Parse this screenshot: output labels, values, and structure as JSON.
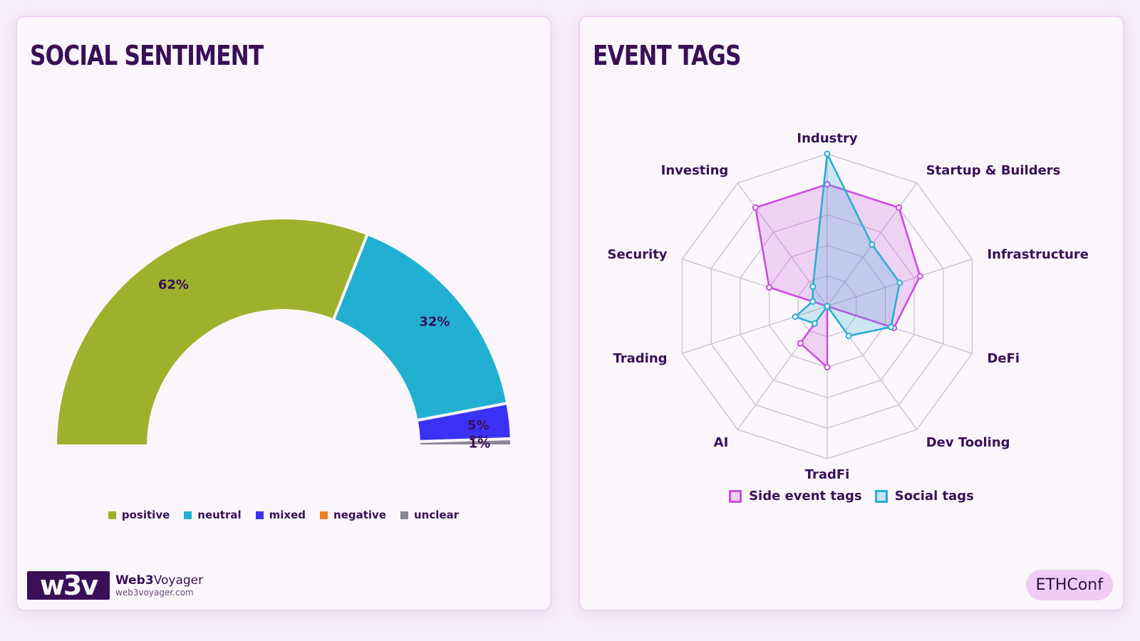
{
  "colors": {
    "title": "#3a0f57",
    "positive": "#9db12c",
    "neutral": "#22b0d2",
    "mixed": "#3a33f5",
    "negative": "#f07e22",
    "unclear": "#8b8797",
    "side_event": "#c94fdc",
    "social": "#2aaed2",
    "grid": "#c8bccf"
  },
  "sentiment": {
    "title": "Social Sentiment",
    "legend": [
      {
        "label": "positive",
        "color_key": "positive"
      },
      {
        "label": "neutral",
        "color_key": "neutral"
      },
      {
        "label": "mixed",
        "color_key": "mixed"
      },
      {
        "label": "negative",
        "color_key": "negative"
      },
      {
        "label": "unclear",
        "color_key": "unclear"
      }
    ]
  },
  "tags": {
    "title": "Event Tags",
    "legend": [
      {
        "label": "Side event tags",
        "color_key": "side_event"
      },
      {
        "label": "Social tags",
        "color_key": "social"
      }
    ]
  },
  "branding": {
    "logo_mark": "w3v",
    "name_bold": "Web3",
    "name_regular": "Voyager",
    "url": "web3voyager.com",
    "event_badge": "ETHConf"
  },
  "chart_data": [
    {
      "type": "pie",
      "subtype": "semicircle-donut",
      "title": "Social Sentiment",
      "categories": [
        "positive",
        "neutral",
        "mixed",
        "negative",
        "unclear"
      ],
      "values": [
        62,
        32,
        5,
        0,
        1
      ],
      "labels": [
        "62%",
        "32%",
        "5%",
        "0%",
        "1%"
      ],
      "legend_position": "bottom"
    },
    {
      "type": "radar",
      "title": "Event Tags",
      "categories": [
        "Industry",
        "Startup & Builders",
        "Infrastructure",
        "DeFi",
        "Dev Tooling",
        "TradFi",
        "AI",
        "Trading",
        "Security",
        "Investing"
      ],
      "max": 5,
      "series": [
        {
          "name": "Side event tags",
          "color_key": "side_event",
          "values": [
            4,
            4,
            3.2,
            2.3,
            0,
            2,
            1.5,
            0,
            2,
            4
          ]
        },
        {
          "name": "Social tags",
          "color_key": "social",
          "values": [
            5,
            2.5,
            2.5,
            2.2,
            1.2,
            0,
            0.7,
            1.1,
            0.5,
            0.8
          ]
        }
      ],
      "legend_position": "bottom"
    }
  ]
}
